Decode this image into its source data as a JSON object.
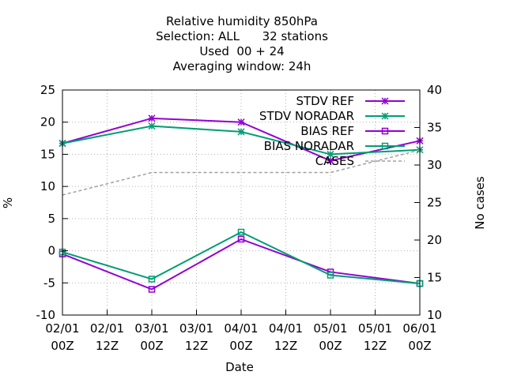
{
  "chart_data": {
    "type": "line",
    "title_lines": [
      "Relative humidity 850hPa",
      "Selection: ALL      32 stations",
      "Used  00 + 24",
      "Averaging window: 24h"
    ],
    "xlabel": "Date",
    "ylabel": "%",
    "y2label": "No cases",
    "x": [
      0,
      1,
      2,
      3,
      4
    ],
    "x_range": [
      0,
      4
    ],
    "ylim": [
      -10,
      25
    ],
    "y2lim": [
      10,
      40
    ],
    "yticks": [
      "-10",
      "-5",
      "0",
      "5",
      "10",
      "15",
      "20",
      "25"
    ],
    "y2ticks": [
      "10",
      "15",
      "20",
      "25",
      "30",
      "35",
      "40"
    ],
    "xticks": [
      {
        "line1": "02/01",
        "line2": "00Z"
      },
      {
        "line1": "02/01",
        "line2": "12Z"
      },
      {
        "line1": "03/01",
        "line2": "00Z"
      },
      {
        "line1": "03/01",
        "line2": "12Z"
      },
      {
        "line1": "04/01",
        "line2": "00Z"
      },
      {
        "line1": "04/01",
        "line2": "12Z"
      },
      {
        "line1": "05/01",
        "line2": "00Z"
      },
      {
        "line1": "05/01",
        "line2": "12Z"
      },
      {
        "line1": "06/01",
        "line2": "00Z"
      }
    ],
    "grid": true,
    "legend_position": "top-right",
    "series": [
      {
        "name": "STDV REF",
        "axis": "y1",
        "marker": "star",
        "color": "#9400d3",
        "values": [
          16.7,
          20.6,
          20.0,
          14.0,
          17.1
        ]
      },
      {
        "name": "STDV NORADAR",
        "axis": "y1",
        "marker": "star",
        "color": "#009e73",
        "values": [
          16.7,
          19.4,
          18.5,
          15.0,
          15.7
        ]
      },
      {
        "name": "BIAS REF",
        "axis": "y1",
        "marker": "square",
        "color": "#9400d3",
        "values": [
          -0.5,
          -6.0,
          1.8,
          -3.3,
          -5.1
        ]
      },
      {
        "name": "BIAS NORADAR",
        "axis": "y1",
        "marker": "square",
        "color": "#009e73",
        "values": [
          -0.2,
          -4.4,
          2.9,
          -3.8,
          -5.1
        ]
      },
      {
        "name": "CASES",
        "axis": "y2",
        "marker": "none",
        "color": "#a0a0a0",
        "dashed": true,
        "values": [
          26.0,
          29.0,
          29.0,
          29.0,
          32.0
        ]
      }
    ]
  }
}
